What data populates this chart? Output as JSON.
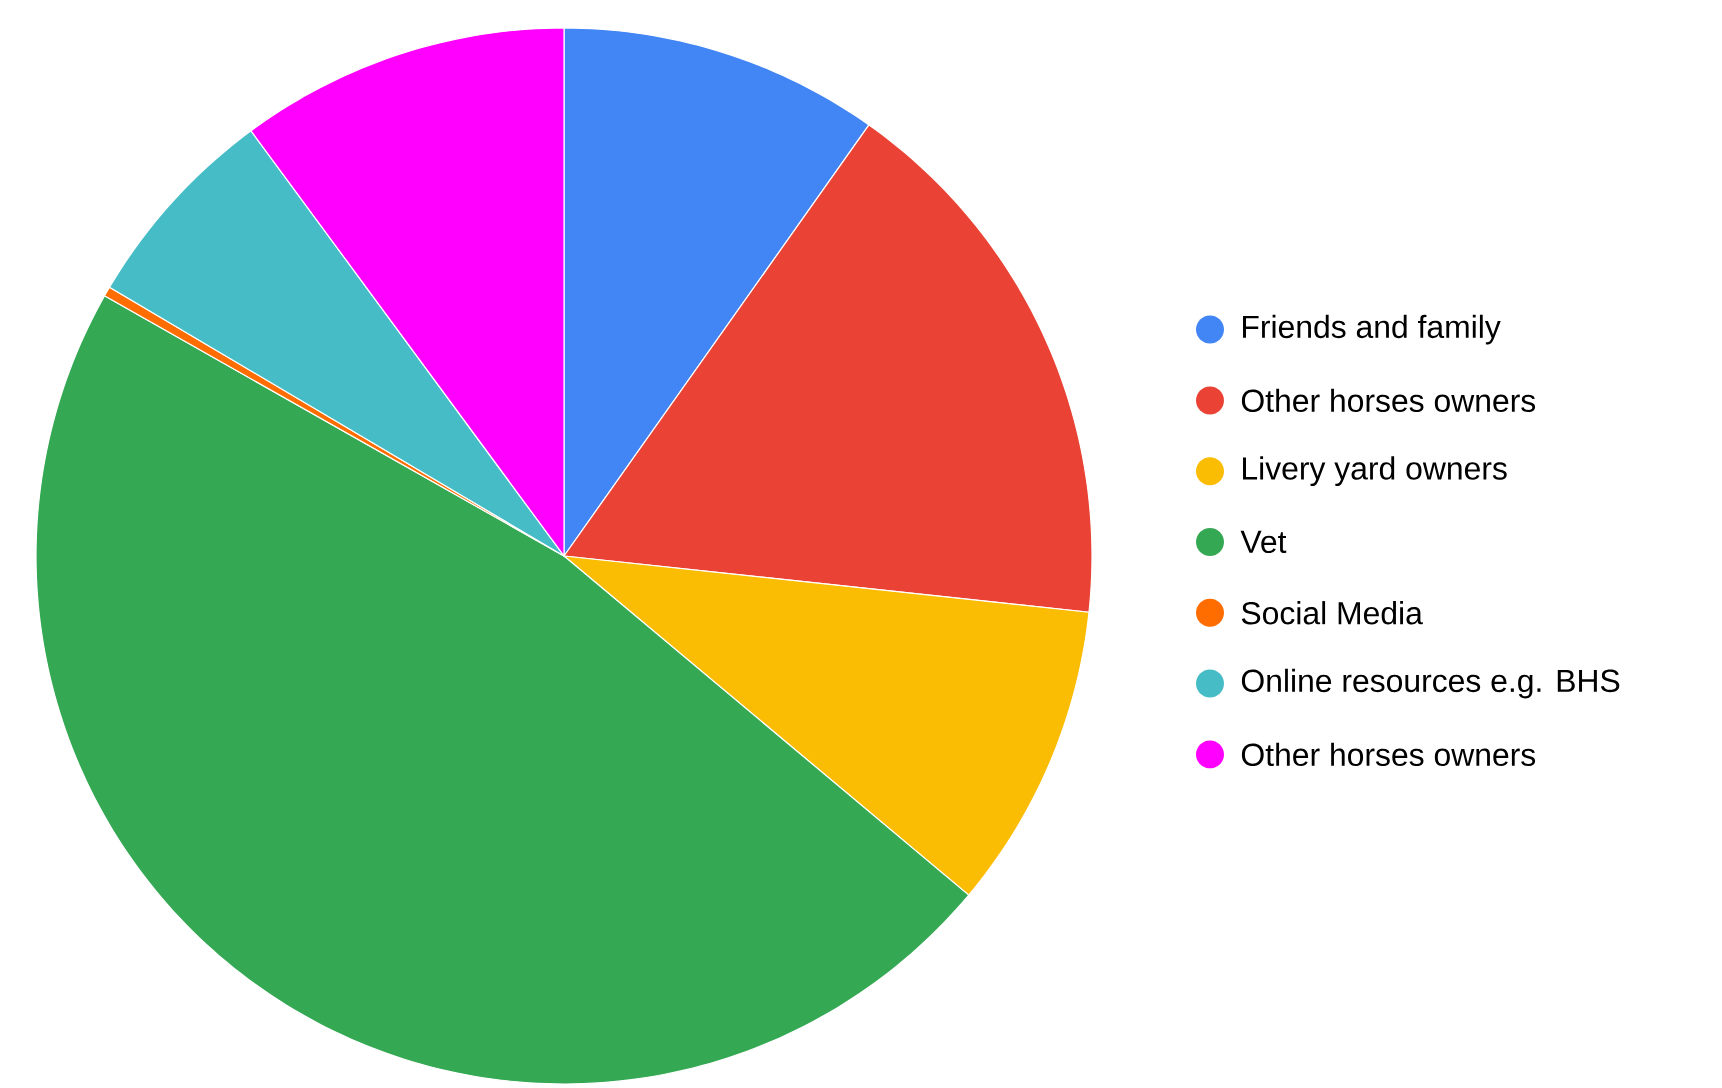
{
  "chart_data": {
    "type": "pie",
    "categories": [
      "Friends and family",
      "Other horses owners",
      "Livery yard owners",
      "Vet",
      "Social Media",
      "Online resources e.g. BHS",
      "Other horses owners"
    ],
    "values": [
      9.8,
      16.9,
      9.4,
      47.1,
      0.3,
      6.4,
      10.1
    ],
    "colors": [
      "#4285f4",
      "#ea4335",
      "#fbbc04",
      "#34a853",
      "#ff6d01",
      "#46bdc6",
      "#ff00ff"
    ],
    "legend": "right"
  }
}
